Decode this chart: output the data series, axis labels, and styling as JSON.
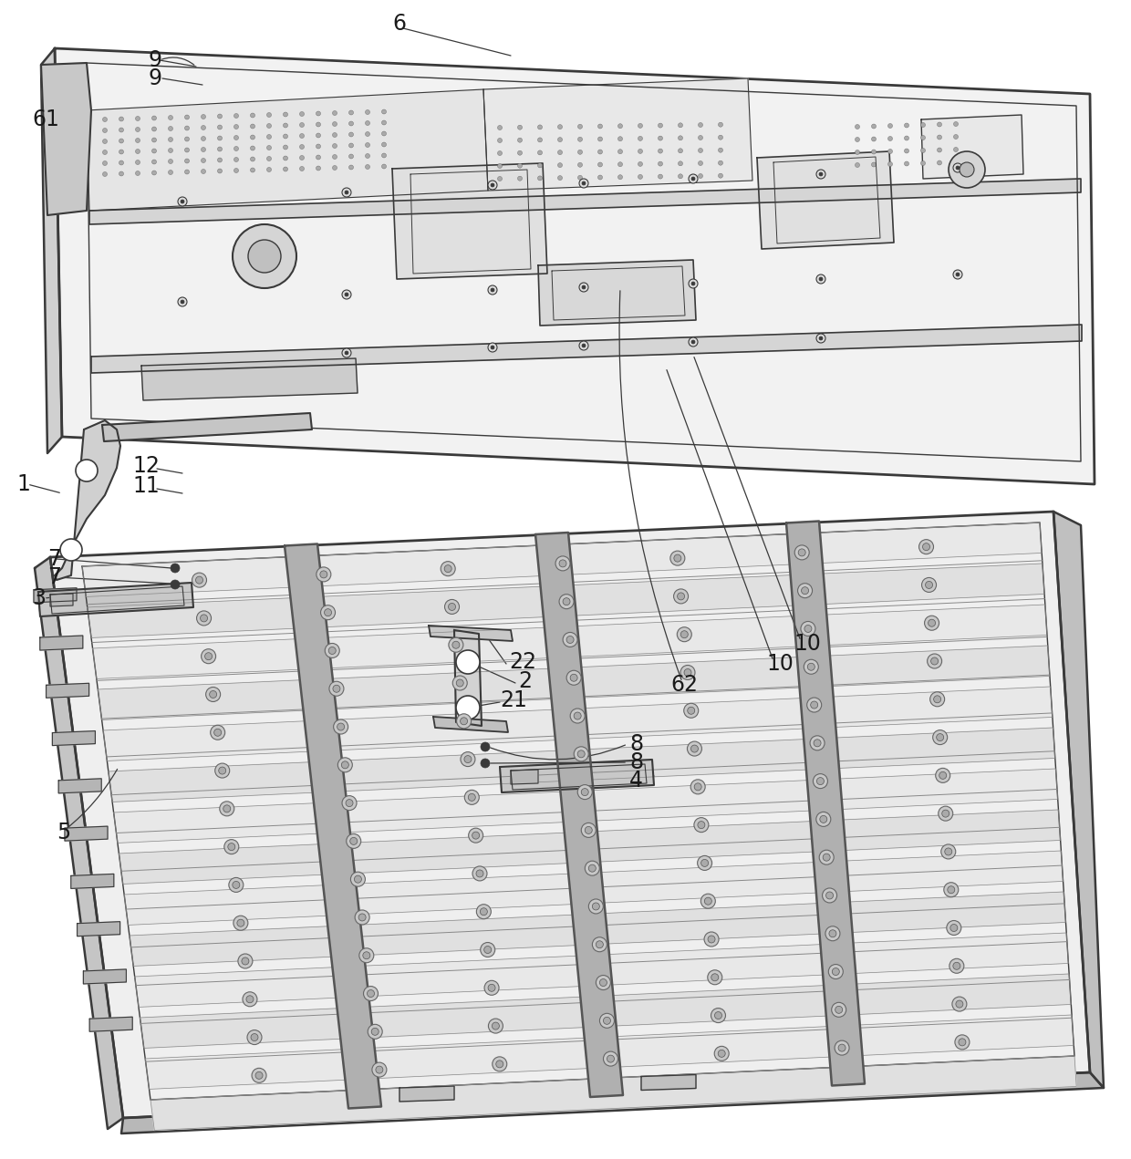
{
  "background_color": "#ffffff",
  "line_color": "#3a3a3a",
  "label_color": "#1a1a1a",
  "figsize": [
    12.4,
    12.71
  ],
  "dpi": 100,
  "font_size_labels": 17
}
